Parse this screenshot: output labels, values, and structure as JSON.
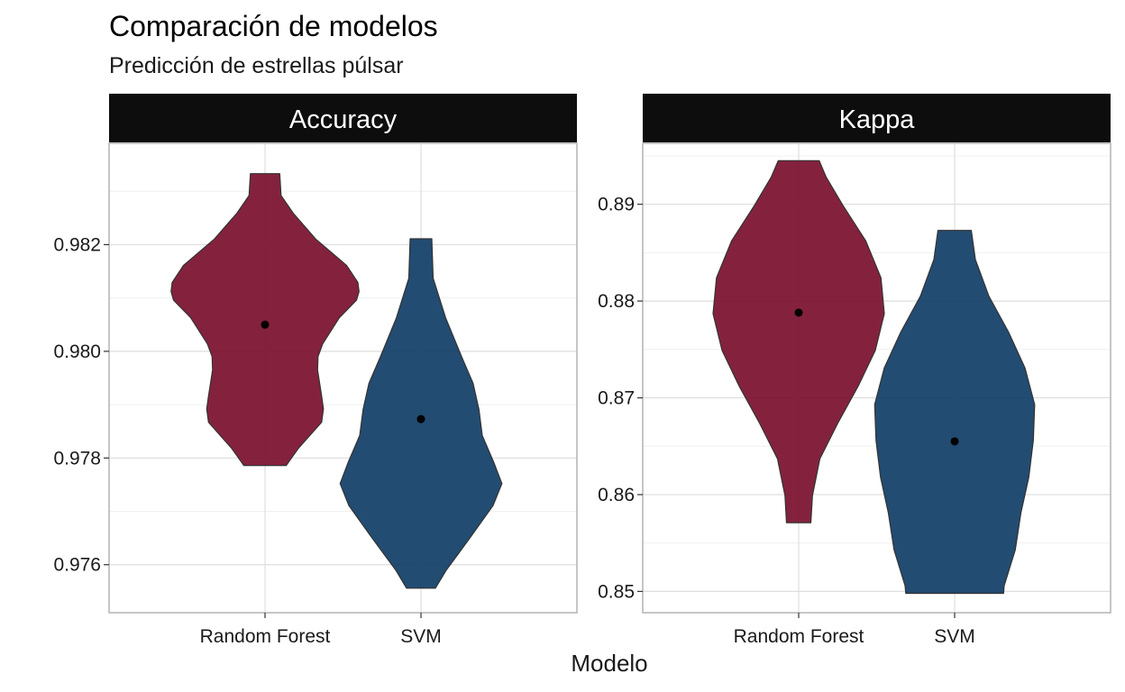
{
  "chart_data": {
    "type": "violin",
    "title": "Comparación de modelos",
    "subtitle": "Predicción de estrellas púlsar",
    "xlabel": "Modelo",
    "ylabel": "",
    "categories": [
      "Random Forest",
      "SVM"
    ],
    "colors": {
      "Random Forest": "#7a0f2e",
      "SVM": "#0f3d66"
    },
    "grid": true,
    "legend": "none",
    "facets": [
      {
        "name": "Accuracy",
        "ylim": [
          0.9751,
          0.9839
        ],
        "yticks": [
          0.976,
          0.978,
          0.98,
          0.982
        ],
        "ytick_labels": [
          "0.976",
          "0.978",
          "0.980",
          "0.982"
        ],
        "violins": [
          {
            "category": "Random Forest",
            "mean": 0.9805,
            "profile": [
              [
                0.97786,
                0.094
              ],
              [
                0.97818,
                0.148
              ],
              [
                0.97867,
                0.251
              ],
              [
                0.97892,
                0.259
              ],
              [
                0.97916,
                0.251
              ],
              [
                0.97965,
                0.233
              ],
              [
                0.9799,
                0.235
              ],
              [
                0.98014,
                0.256
              ],
              [
                0.98063,
                0.33
              ],
              [
                0.98096,
                0.406
              ],
              [
                0.98112,
                0.417
              ],
              [
                0.98129,
                0.412
              ],
              [
                0.98161,
                0.362
              ],
              [
                0.9821,
                0.226
              ],
              [
                0.98259,
                0.125
              ],
              [
                0.98292,
                0.071
              ],
              [
                0.98333,
                0.065
              ]
            ]
          },
          {
            "category": "SVM",
            "mean": 0.97873,
            "profile": [
              [
                0.97556,
                0.064
              ],
              [
                0.97589,
                0.111
              ],
              [
                0.97654,
                0.224
              ],
              [
                0.97711,
                0.32
              ],
              [
                0.97752,
                0.359
              ],
              [
                0.97793,
                0.322
              ],
              [
                0.97842,
                0.272
              ],
              [
                0.97891,
                0.257
              ],
              [
                0.9794,
                0.231
              ],
              [
                0.97989,
                0.181
              ],
              [
                0.98063,
                0.109
              ],
              [
                0.98137,
                0.054
              ],
              [
                0.98211,
                0.048
              ]
            ]
          }
        ]
      },
      {
        "name": "Kappa",
        "ylim": [
          0.8478,
          0.8963
        ],
        "yticks": [
          0.85,
          0.86,
          0.87,
          0.88,
          0.89
        ],
        "ytick_labels": [
          "0.85",
          "0.86",
          "0.87",
          "0.88",
          "0.89"
        ],
        "violins": [
          {
            "category": "Random Forest",
            "mean": 0.8788,
            "profile": [
              [
                0.8571,
                0.054
              ],
              [
                0.8599,
                0.061
              ],
              [
                0.8637,
                0.094
              ],
              [
                0.8674,
                0.174
              ],
              [
                0.8712,
                0.264
              ],
              [
                0.8749,
                0.34
              ],
              [
                0.8787,
                0.38
              ],
              [
                0.8824,
                0.365
              ],
              [
                0.8862,
                0.298
              ],
              [
                0.8899,
                0.196
              ],
              [
                0.8928,
                0.122
              ],
              [
                0.8945,
                0.091
              ]
            ]
          },
          {
            "category": "SVM",
            "mean": 0.8655,
            "profile": [
              [
                0.8498,
                0.217
              ],
              [
                0.8506,
                0.22
              ],
              [
                0.8543,
                0.269
              ],
              [
                0.8581,
                0.294
              ],
              [
                0.8618,
                0.329
              ],
              [
                0.8656,
                0.349
              ],
              [
                0.8693,
                0.355
              ],
              [
                0.8731,
                0.312
              ],
              [
                0.8768,
                0.239
              ],
              [
                0.8805,
                0.152
              ],
              [
                0.8843,
                0.092
              ],
              [
                0.8873,
                0.074
              ]
            ]
          }
        ]
      }
    ]
  }
}
